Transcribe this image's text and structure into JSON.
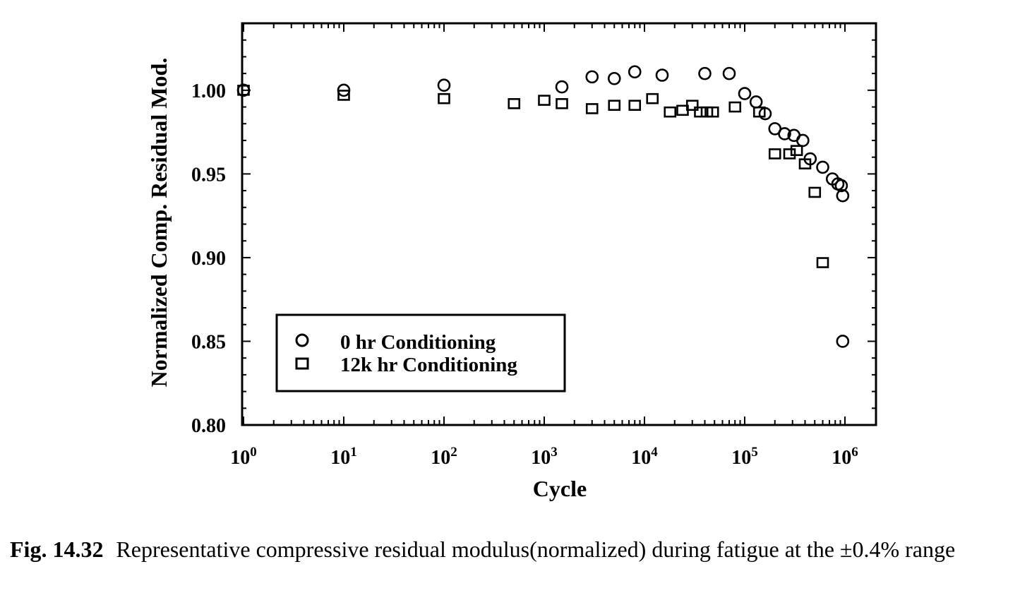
{
  "chart_data": {
    "type": "scatter",
    "xscale": "log",
    "xlim": [
      1,
      1000000
    ],
    "ylim": [
      0.8,
      1.04
    ],
    "xlabel": "Cycle",
    "ylabel": "Normalized Comp. Residual Mod.",
    "x_ticks": [
      {
        "value": 1,
        "base": "10",
        "exp": "0"
      },
      {
        "value": 10,
        "base": "10",
        "exp": "1"
      },
      {
        "value": 100,
        "base": "10",
        "exp": "2"
      },
      {
        "value": 1000,
        "base": "10",
        "exp": "3"
      },
      {
        "value": 10000,
        "base": "10",
        "exp": "4"
      },
      {
        "value": 100000,
        "base": "10",
        "exp": "5"
      },
      {
        "value": 1000000,
        "base": "10",
        "exp": "6"
      }
    ],
    "y_ticks": [
      {
        "value": 0.8,
        "label": "0.80"
      },
      {
        "value": 0.85,
        "label": "0.85"
      },
      {
        "value": 0.9,
        "label": "0.90"
      },
      {
        "value": 0.95,
        "label": "0.95"
      },
      {
        "value": 1.0,
        "label": "1.00"
      }
    ],
    "legend_position": "bottom-left",
    "series": [
      {
        "name": "0 hr Conditioning",
        "marker": "circle",
        "points": [
          [
            1,
            1.0
          ],
          [
            10,
            1.0
          ],
          [
            100,
            1.003
          ],
          [
            1500,
            1.002
          ],
          [
            3000,
            1.008
          ],
          [
            5000,
            1.007
          ],
          [
            8000,
            1.011
          ],
          [
            15000,
            1.009
          ],
          [
            40000,
            1.01
          ],
          [
            70000,
            1.01
          ],
          [
            100000,
            0.998
          ],
          [
            130000,
            0.993
          ],
          [
            160000,
            0.986
          ],
          [
            200000,
            0.977
          ],
          [
            250000,
            0.974
          ],
          [
            310000,
            0.973
          ],
          [
            380000,
            0.97
          ],
          [
            450000,
            0.959
          ],
          [
            600000,
            0.954
          ],
          [
            750000,
            0.947
          ],
          [
            850000,
            0.944
          ],
          [
            920000,
            0.943
          ],
          [
            950000,
            0.937
          ],
          [
            950000,
            0.85
          ]
        ]
      },
      {
        "name": "12k hr Conditioning",
        "marker": "square",
        "points": [
          [
            1,
            1.0
          ],
          [
            10,
            0.997
          ],
          [
            100,
            0.995
          ],
          [
            500,
            0.992
          ],
          [
            1000,
            0.994
          ],
          [
            1500,
            0.992
          ],
          [
            3000,
            0.989
          ],
          [
            5000,
            0.991
          ],
          [
            8000,
            0.991
          ],
          [
            12000,
            0.995
          ],
          [
            18000,
            0.987
          ],
          [
            24000,
            0.988
          ],
          [
            30000,
            0.991
          ],
          [
            36000,
            0.987
          ],
          [
            42000,
            0.987
          ],
          [
            48000,
            0.987
          ],
          [
            80000,
            0.99
          ],
          [
            140000,
            0.987
          ],
          [
            200000,
            0.962
          ],
          [
            280000,
            0.962
          ],
          [
            330000,
            0.964
          ],
          [
            400000,
            0.956
          ],
          [
            500000,
            0.939
          ],
          [
            600000,
            0.897
          ]
        ]
      }
    ]
  },
  "caption": {
    "label": "Fig. 14.32",
    "text": "Representative compressive residual modulus(normalized) during fatigue at the ±0.4% range"
  }
}
